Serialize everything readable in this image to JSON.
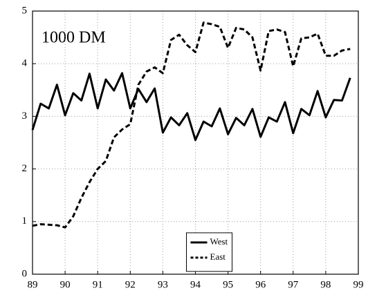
{
  "chart_data": {
    "type": "line",
    "annotation": "1000 DM",
    "x": [
      89,
      89.25,
      89.5,
      89.75,
      90,
      90.25,
      90.5,
      90.75,
      91,
      91.25,
      91.5,
      91.75,
      92,
      92.25,
      92.5,
      92.75,
      93,
      93.25,
      93.5,
      93.75,
      94,
      94.25,
      94.5,
      94.75,
      95,
      95.25,
      95.5,
      95.75,
      96,
      96.25,
      96.5,
      96.75,
      97,
      97.25,
      97.5,
      97.75,
      98,
      98.25,
      98.5,
      98.75
    ],
    "series": [
      {
        "name": "West",
        "color": "#000000",
        "dash": "solid",
        "values": [
          2.74,
          3.24,
          3.15,
          3.6,
          3.02,
          3.44,
          3.3,
          3.81,
          3.15,
          3.7,
          3.49,
          3.82,
          3.15,
          3.52,
          3.27,
          3.53,
          2.69,
          2.98,
          2.83,
          3.06,
          2.55,
          2.9,
          2.81,
          3.15,
          2.66,
          2.97,
          2.83,
          3.14,
          2.61,
          2.98,
          2.9,
          3.27,
          2.68,
          3.14,
          3.02,
          3.48,
          2.98,
          3.31,
          3.3,
          3.73
        ]
      },
      {
        "name": "East",
        "color": "#000000",
        "dash": "dashed",
        "values": [
          0.92,
          0.95,
          0.94,
          0.93,
          0.89,
          1.1,
          1.45,
          1.75,
          2.0,
          2.15,
          2.6,
          2.75,
          2.85,
          3.6,
          3.85,
          3.93,
          3.82,
          4.45,
          4.55,
          4.35,
          4.22,
          4.78,
          4.75,
          4.7,
          4.3,
          4.68,
          4.65,
          4.5,
          3.87,
          4.62,
          4.65,
          4.6,
          3.95,
          4.48,
          4.5,
          4.57,
          4.15,
          4.15,
          4.25,
          4.28
        ]
      }
    ],
    "xlim": [
      89,
      99
    ],
    "xticks": [
      89,
      90,
      91,
      92,
      93,
      94,
      95,
      96,
      97,
      98,
      99
    ],
    "ylim": [
      0,
      5
    ],
    "yticks": [
      0,
      1,
      2,
      3,
      4,
      5
    ],
    "grid": true,
    "legend": "bottom"
  }
}
